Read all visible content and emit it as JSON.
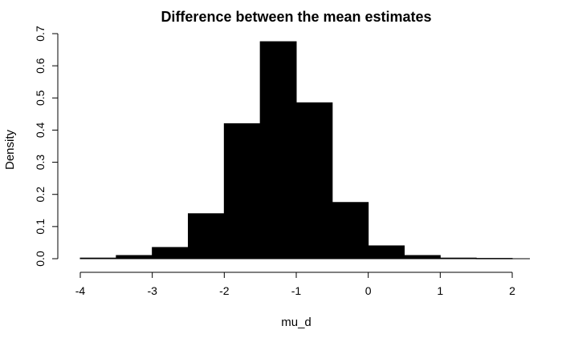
{
  "chart_data": {
    "type": "bar",
    "subtype": "histogram",
    "title": "Difference between the mean estimates",
    "xlabel": "mu_d",
    "ylabel": "Density",
    "xlim": [
      -4,
      2
    ],
    "ylim": [
      0,
      0.7
    ],
    "x_ticks": [
      -4,
      -3,
      -2,
      -1,
      0,
      1,
      2
    ],
    "y_ticks": [
      0.0,
      0.1,
      0.2,
      0.3,
      0.4,
      0.5,
      0.6,
      0.7
    ],
    "y_tick_labels": [
      "0.0",
      "0.1",
      "0.2",
      "0.3",
      "0.4",
      "0.5",
      "0.6",
      "0.7"
    ],
    "bar_color": "#000000",
    "bins": [
      {
        "start": -4.0,
        "end": -3.5,
        "value": 0.002
      },
      {
        "start": -3.5,
        "end": -3.0,
        "value": 0.01
      },
      {
        "start": -3.0,
        "end": -2.5,
        "value": 0.035
      },
      {
        "start": -2.5,
        "end": -2.0,
        "value": 0.14
      },
      {
        "start": -2.0,
        "end": -1.5,
        "value": 0.42
      },
      {
        "start": -1.5,
        "end": -1.0,
        "value": 0.675
      },
      {
        "start": -1.0,
        "end": -0.5,
        "value": 0.485
      },
      {
        "start": -0.5,
        "end": 0.0,
        "value": 0.175
      },
      {
        "start": 0.0,
        "end": 0.5,
        "value": 0.04
      },
      {
        "start": 0.5,
        "end": 1.0,
        "value": 0.01
      },
      {
        "start": 1.0,
        "end": 1.5,
        "value": 0.002
      },
      {
        "start": 1.5,
        "end": 2.0,
        "value": 0.001
      }
    ]
  }
}
